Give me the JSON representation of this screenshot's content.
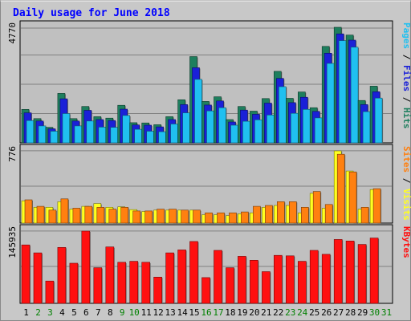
{
  "chart_data": {
    "type": "bar",
    "title": "Daily usage for June 2018",
    "x": [
      "1",
      "2",
      "3",
      "4",
      "5",
      "6",
      "7",
      "8",
      "9",
      "10",
      "11",
      "12",
      "13",
      "14",
      "15",
      "16",
      "17",
      "18",
      "19",
      "20",
      "21",
      "22",
      "23",
      "24",
      "25",
      "26",
      "27",
      "28",
      "29",
      "30",
      "31"
    ],
    "weekend_days": [
      "2",
      "3",
      "9",
      "10",
      "16",
      "17",
      "23",
      "24",
      "30",
      "31"
    ],
    "panels": [
      {
        "max_label": "4770",
        "ymax": 4770,
        "legend": [
          "Pages",
          "Files",
          "Hits"
        ],
        "series": [
          {
            "name": "Hits",
            "color": "#1e7f5e",
            "values": [
              1380,
              1000,
              640,
              2040,
              1000,
              1500,
              1080,
              1020,
              1550,
              830,
              820,
              750,
              1080,
              1780,
              3560,
              1710,
              1900,
              960,
              1500,
              1310,
              1830,
              2950,
              1840,
              2100,
              1450,
              3980,
              4770,
              4450,
              1750,
              2340
            ]
          },
          {
            "name": "Files",
            "color": "#1a20d8",
            "values": [
              1240,
              900,
              580,
              1820,
              900,
              1340,
              960,
              920,
              1390,
              740,
              730,
              660,
              960,
              1580,
              3100,
              1560,
              1730,
              860,
              1350,
              1180,
              1640,
              2660,
              1660,
              1880,
              1300,
              3700,
              4500,
              4240,
              1580,
              2110
            ]
          },
          {
            "name": "Pages",
            "color": "#20c0f0",
            "values": [
              920,
              700,
              480,
              1210,
              700,
              900,
              650,
              640,
              1130,
              560,
              480,
              460,
              780,
              1240,
              2620,
              1320,
              1450,
              730,
              890,
              950,
              1150,
              2320,
              1220,
              1380,
              1030,
              3280,
              4220,
              3950,
              1290,
              1850
            ]
          }
        ]
      },
      {
        "max_label": "776",
        "ymax": 776,
        "legend": [
          "Sites",
          "Visits"
        ],
        "series": [
          {
            "name": "Visits",
            "color": "#ffff20",
            "values": [
              240,
              170,
              170,
              230,
              150,
              180,
              210,
              170,
              175,
              145,
              125,
              140,
              140,
              140,
              140,
              90,
              90,
              80,
              100,
              110,
              170,
              190,
              190,
              110,
              320,
              160,
              776,
              560,
              150,
              360
            ]
          },
          {
            "name": "Sites",
            "color": "#ff8010",
            "values": [
              250,
              180,
              140,
              260,
              160,
              180,
              170,
              150,
              170,
              130,
              130,
              150,
              150,
              140,
              140,
              110,
              110,
              110,
              120,
              180,
              190,
              230,
              230,
              170,
              340,
              200,
              740,
              550,
              170,
              370
            ]
          }
        ]
      },
      {
        "max_label": "145935",
        "ymax": 145935,
        "legend": [
          "KBytes"
        ],
        "series": [
          {
            "name": "KBytes",
            "color": "#ff1010",
            "values": [
              118000,
              102000,
              45000,
              113000,
              81000,
              145935,
              72000,
              114000,
              83000,
              85000,
              83000,
              53000,
              102000,
              108000,
              125000,
              52000,
              107000,
              72000,
              95000,
              87000,
              64000,
              97000,
              96000,
              85000,
              107000,
              99000,
              129000,
              126000,
              119000,
              132000
            ]
          }
        ]
      }
    ],
    "colors": {
      "background": "#c8c8c8",
      "plot": "#c0c0c0",
      "title": "#0000ff",
      "axis_text": "#000000",
      "weekday_label": "#000000",
      "weekend_label": "#008000"
    }
  }
}
